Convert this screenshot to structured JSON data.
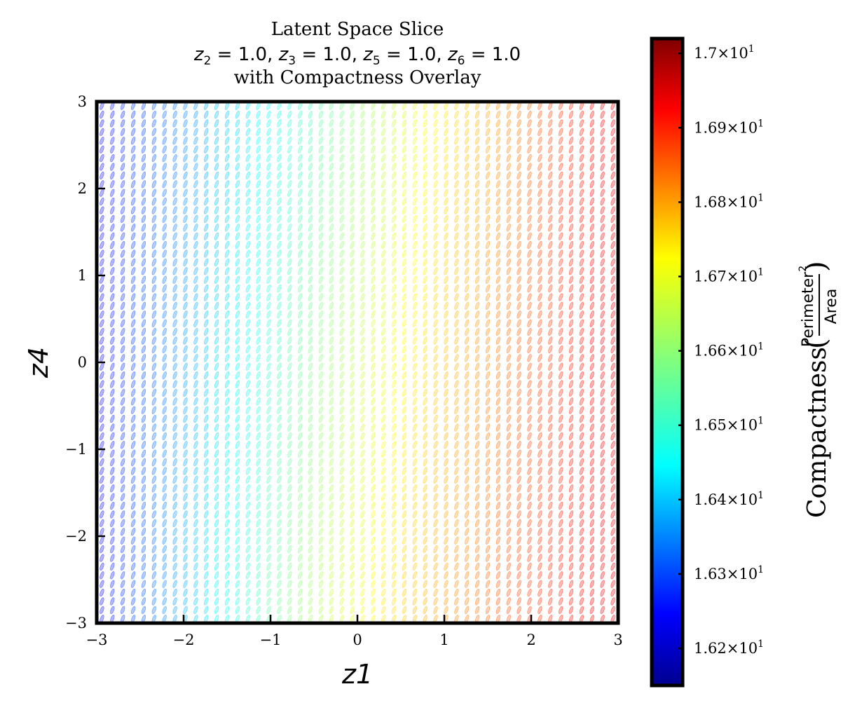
{
  "chart_data": {
    "type": "scatter",
    "title": {
      "line1": "Latent Space Slice",
      "line2": "z2 = 1.0, z3 = 1.0, z5 = 1.0, z6 = 1.0",
      "line3": "with Compactness Overlay"
    },
    "xlabel": "z1",
    "ylabel": "z4",
    "xlim": [
      -3,
      3
    ],
    "ylim": [
      -3,
      3
    ],
    "x_ticks": [
      -3,
      -2,
      -1,
      0,
      1,
      2,
      3
    ],
    "y_ticks": [
      -3,
      -2,
      -1,
      0,
      1,
      2,
      3
    ],
    "x_tick_labels": [
      "−3",
      "−2",
      "−1",
      "0",
      "1",
      "2",
      "3"
    ],
    "y_tick_labels": [
      "−3",
      "−2",
      "−1",
      "0",
      "1",
      "2",
      "3"
    ],
    "grid": false,
    "markers": {
      "shape": "ellipse",
      "grid_columns": 50,
      "grid_rows": 60,
      "opacity": 0.3
    },
    "colorbar": {
      "label": "Compactness",
      "label_fraction_numerator": "Perimeter",
      "label_fraction_numerator_exponent": "2",
      "label_fraction_denominator": "Area",
      "colormap": "jet",
      "range": [
        16.15,
        17.02
      ],
      "ticks": [
        16.2,
        16.3,
        16.4,
        16.5,
        16.6,
        16.7,
        16.8,
        16.9,
        17.0
      ],
      "tick_labels": [
        "1.62",
        "1.63",
        "1.64",
        "1.65",
        "1.66",
        "1.67",
        "1.68",
        "1.69",
        "1.7"
      ],
      "tick_label_suffix": "×10",
      "tick_label_exponent": "1"
    }
  }
}
